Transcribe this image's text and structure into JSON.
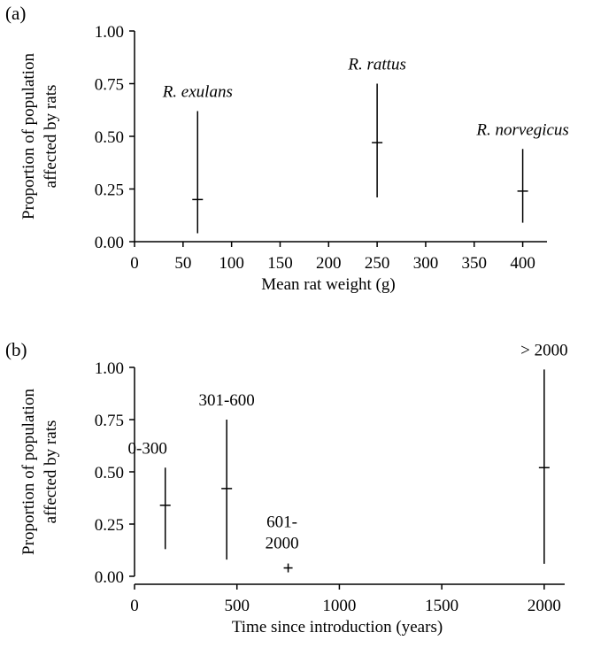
{
  "chart_data": [
    {
      "type": "scatter",
      "panel_label": "(a)",
      "title": "",
      "xlabel": "Mean rat weight (g)",
      "ylabel": "Proportion of population affected by rats",
      "ylabel_lines": [
        "Proportion of population",
        "affected by rats"
      ],
      "xlim": [
        0,
        425
      ],
      "ylim": [
        0,
        1
      ],
      "x_ticks": [
        0,
        50,
        100,
        150,
        200,
        250,
        300,
        350,
        400
      ],
      "x_tick_labels": [
        "0",
        "50",
        "100",
        "150",
        "200",
        "250",
        "300",
        "350",
        "400"
      ],
      "y_ticks": [
        0,
        0.25,
        0.5,
        0.75,
        1
      ],
      "y_tick_labels": [
        "0.00",
        "0.25",
        "0.50",
        "0.75",
        "1.00"
      ],
      "grid": false,
      "italic_labels": true,
      "points": [
        {
          "label": "R. exulans",
          "x": 65,
          "y": 0.2,
          "low": 0.04,
          "high": 0.62
        },
        {
          "label": "R. rattus",
          "x": 250,
          "y": 0.47,
          "low": 0.21,
          "high": 0.75
        },
        {
          "label": "R. norvegicus",
          "x": 400,
          "y": 0.24,
          "low": 0.09,
          "high": 0.44
        }
      ]
    },
    {
      "type": "scatter",
      "panel_label": "(b)",
      "title": "",
      "xlabel": "Time since introduction (years)",
      "ylabel": "Proportion of population affected by rats",
      "ylabel_lines": [
        "Proportion of population",
        "affected by rats"
      ],
      "xlim": [
        0,
        2100
      ],
      "ylim": [
        0,
        1
      ],
      "x_ticks": [
        0,
        500,
        1000,
        1500,
        2000
      ],
      "x_tick_labels": [
        "0",
        "500",
        "1000",
        "1500",
        "2000"
      ],
      "y_ticks": [
        0,
        0.25,
        0.5,
        0.75,
        1
      ],
      "y_tick_labels": [
        "0.00",
        "0.25",
        "0.50",
        "0.75",
        "1.00"
      ],
      "grid": false,
      "italic_labels": false,
      "points": [
        {
          "label": "0-300",
          "label_lines": [
            "0-300"
          ],
          "x": 150,
          "y": 0.34,
          "low": 0.13,
          "high": 0.52
        },
        {
          "label": "301-600",
          "label_lines": [
            "301-600"
          ],
          "x": 450,
          "y": 0.42,
          "low": 0.08,
          "high": 0.75
        },
        {
          "label": "601-2000",
          "label_lines": [
            "601-",
            "2000"
          ],
          "x": 750,
          "y": 0.04,
          "low": 0.04,
          "high": 0.04
        },
        {
          "label": "> 2000",
          "label_lines": [
            "> 2000"
          ],
          "x": 2000,
          "y": 0.52,
          "low": 0.06,
          "high": 0.99
        }
      ]
    }
  ]
}
